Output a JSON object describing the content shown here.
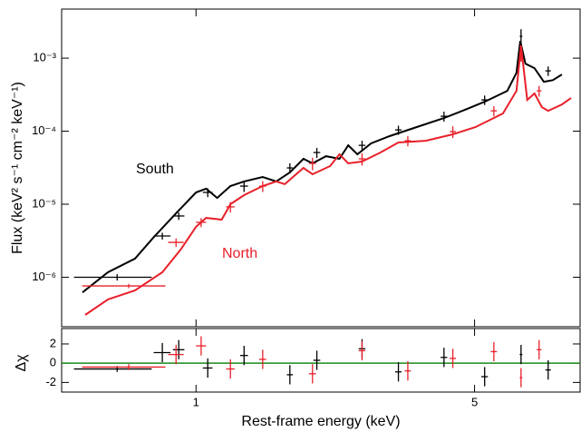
{
  "chart_data": [
    {
      "type": "line",
      "xscale": "log",
      "yscale": "log",
      "xlim": [
        0.46,
        9.2
      ],
      "ylim": [
        2.1e-07,
        0.0047
      ],
      "yticks": [
        {
          "value": 1e-06,
          "label": "10⁻⁶"
        },
        {
          "value": 1e-05,
          "label": "10⁻⁵"
        },
        {
          "value": 0.0001,
          "label": "10⁻⁴"
        },
        {
          "value": 0.001,
          "label": "10⁻³"
        }
      ],
      "ylabel": "Flux (keV² s⁻¹ cm⁻² keV⁻¹)",
      "series": [
        {
          "name": "South",
          "color": "#000000",
          "x": [
            0.519,
            0.601,
            0.703,
            0.782,
            0.891,
            1.0,
            1.06,
            1.13,
            1.22,
            1.32,
            1.47,
            1.59,
            1.72,
            1.86,
            1.96,
            2.12,
            2.29,
            2.41,
            2.54,
            2.75,
            3.06,
            3.58,
            4.19,
            4.77,
            5.3,
            6.04,
            6.37,
            6.51,
            6.71,
            7.07,
            7.46,
            7.86,
            8.28
          ],
          "values": [
            6.2e-07,
            1.17e-06,
            1.8e-06,
            3.5e-06,
            7.5e-06,
            1.45e-05,
            1.63e-05,
            1.22e-05,
            1.77e-05,
            2.05e-05,
            2.36e-05,
            2.05e-05,
            2.72e-05,
            4.18e-05,
            3.62e-05,
            4.55e-05,
            4.18e-05,
            6.4e-05,
            4.82e-05,
            6.8e-05,
            8.55e-05,
            0.000114,
            0.000151,
            0.0002,
            0.000253,
            0.000357,
            0.00063,
            0.00172,
            0.00084,
            0.00073,
            0.000475,
            0.0005,
            0.000597
          ],
          "points": {
            "x": [
              0.634,
              0.823,
              0.905,
              1.07,
              1.32,
              1.72,
              2.01,
              2.61,
              3.22,
              4.19,
              5.3,
              6.54,
              7.65
            ],
            "xerr": [
              0.14,
              0.04,
              0.03,
              0.03,
              0.03,
              0.03,
              0.04,
              0.05,
              0.06,
              0.08,
              0.1,
              0.05,
              0.12
            ],
            "values": [
              1e-06,
              3.67e-06,
              6.9e-06,
              1.45e-05,
              1.77e-05,
              3.14e-05,
              5.1e-05,
              6.4e-05,
              0.000104,
              0.00016,
              0.000268,
              0.00199,
              0.00067
            ],
            "yerr": [
              1e-07,
              4e-07,
              8e-07,
              2e-06,
              3e-06,
              5e-06,
              8e-06,
              1e-05,
              1.5e-05,
              2.5e-05,
              4e-05,
              0.0005,
              0.0001
            ]
          }
        },
        {
          "name": "North",
          "color": "#e8202a",
          "x": [
            0.527,
            0.601,
            0.703,
            0.823,
            0.915,
            1.0,
            1.06,
            1.16,
            1.22,
            1.32,
            1.47,
            1.59,
            1.67,
            1.86,
            1.96,
            2.17,
            2.29,
            2.41,
            2.61,
            2.9,
            3.22,
            3.77,
            4.41,
            5.03,
            5.89,
            6.37,
            6.54,
            6.78,
            7.07,
            7.38,
            7.65,
            8.28,
            8.73
          ],
          "values": [
            3.05e-07,
            4.97e-07,
            6.6e-07,
            1.17e-06,
            2.39e-06,
            4.9e-06,
            6.5e-06,
            6.15e-06,
            1e-05,
            1.33e-05,
            1.77e-05,
            2.05e-05,
            1.88e-05,
            3.14e-05,
            2.57e-05,
            3.33e-05,
            4.82e-05,
            3.62e-05,
            3.84e-05,
            5.1e-05,
            7e-05,
            7.4e-05,
            9.06e-05,
            0.000114,
            0.000175,
            0.000357,
            0.00149,
            0.000268,
            0.000328,
            0.000213,
            0.00019,
            0.000232,
            0.000284
          ],
          "points": {
            "x": [
              0.678,
              0.891,
              1.03,
              1.22,
              1.47,
              1.96,
              2.61,
              3.4,
              4.41,
              5.59,
              6.54,
              7.26
            ],
            "xerr": [
              0.16,
              0.04,
              0.03,
              0.03,
              0.03,
              0.04,
              0.05,
              0.06,
              0.08,
              0.1,
              0.05,
              0.1
            ],
            "values": [
              7.6e-07,
              3e-06,
              5.65e-06,
              9.2e-06,
              1.77e-05,
              3.62e-05,
              4.18e-05,
              7.4e-05,
              9.86e-05,
              0.00019,
              0.00119,
              0.000357
            ],
            "yerr": [
              5e-08,
              4e-07,
              8e-07,
              1.5e-06,
              3e-06,
              7e-06,
              8e-06,
              1.2e-05,
              1.8e-05,
              3e-05,
              0.0003,
              6e-05
            ]
          }
        }
      ]
    },
    {
      "type": "scatter",
      "xscale": "log",
      "xlim": [
        0.46,
        9.2
      ],
      "ylim": [
        -3,
        3.6
      ],
      "xticks": [
        1,
        5
      ],
      "yticks": [
        -2,
        0,
        2
      ],
      "xlabel": "Rest-frame energy (keV)",
      "ylabel": "Δχ",
      "hline": {
        "value": 0,
        "color": "#1a8a1a"
      },
      "series": [
        {
          "color": "#000000",
          "x": [
            0.634,
            0.823,
            0.905,
            1.07,
            1.32,
            1.72,
            2.01,
            2.61,
            3.22,
            4.19,
            5.3,
            6.54,
            7.65
          ],
          "xerr": [
            0.14,
            0.04,
            0.03,
            0.03,
            0.03,
            0.03,
            0.04,
            0.05,
            0.06,
            0.08,
            0.1,
            0.05,
            0.12
          ],
          "values": [
            -0.6,
            1.1,
            1.4,
            -0.5,
            0.8,
            -1.2,
            0.3,
            1.5,
            -0.9,
            0.6,
            -1.4,
            0.9,
            -0.7
          ],
          "yerr": [
            0.3,
            1,
            1,
            1,
            1,
            1,
            1,
            1,
            1,
            1,
            1,
            1,
            1
          ]
        },
        {
          "color": "#e8202a",
          "x": [
            0.678,
            0.891,
            1.03,
            1.22,
            1.47,
            1.96,
            2.61,
            3.4,
            4.41,
            5.59,
            6.54,
            7.26
          ],
          "xerr": [
            0.16,
            0.04,
            0.03,
            0.03,
            0.03,
            0.04,
            0.05,
            0.06,
            0.08,
            0.1,
            0.05,
            0.1
          ],
          "values": [
            -0.4,
            0.9,
            1.8,
            -0.6,
            0.4,
            -1.1,
            1.3,
            -0.8,
            0.5,
            1.2,
            -1.5,
            1.4
          ],
          "yerr": [
            0.3,
            1,
            1,
            1,
            1,
            1,
            1,
            1,
            1,
            1,
            1,
            1
          ]
        }
      ]
    }
  ]
}
